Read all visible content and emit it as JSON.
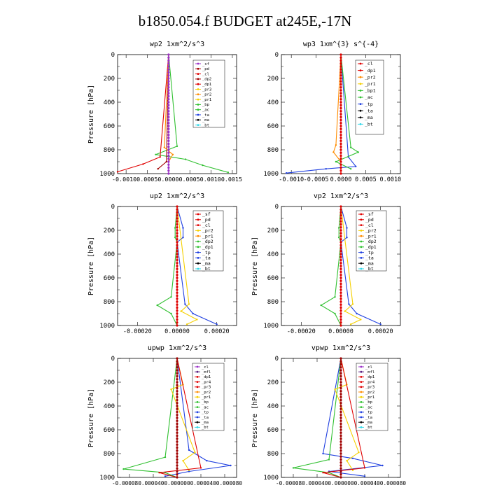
{
  "title": "b1850.054.f  BUDGET at245E,-17N",
  "colors": {
    "purple": "#9b30c8",
    "darkred": "#a00000",
    "red": "#e00000",
    "orange": "#ff8c00",
    "yellow": "#f5d000",
    "green": "#30c030",
    "blue": "#2040e0",
    "black": "#000000",
    "cyan": "#30d8e8",
    "darkpurple": "#5a2080"
  },
  "chart_data": [
    {
      "type": "line",
      "title": "wp2   1xm^2/s^3",
      "ylabel": "Pressure [hPa]",
      "ylim": [
        1000,
        0
      ],
      "xlim": [
        -0.0012,
        0.0016
      ],
      "xticks": [
        -0.001,
        -0.0005,
        0.0,
        0.0005,
        0.001,
        0.0015
      ],
      "xticklabels": [
        "-0.0010",
        "-0.0005",
        "0.0000",
        "0.0005",
        "0.0010",
        "0.0015"
      ],
      "xtick_text": "-0.00100.00050.00000.00050.00100.0015",
      "yticks": [
        0,
        200,
        400,
        600,
        800,
        1000
      ],
      "yticklabels": [
        "0",
        "200",
        "400",
        "600",
        "800",
        "1000"
      ],
      "legend": [
        "_sf",
        "_pd",
        "_cl",
        "_dp2",
        "_dp1",
        "_pr3",
        "_pr2",
        "_pr1",
        "_bp",
        "_ac",
        "_ta",
        "_ma",
        "_bt"
      ],
      "legend_colors": [
        "purple",
        "darkred",
        "red",
        "darkred",
        "red",
        "yellow",
        "orange",
        "yellow",
        "green",
        "green",
        "blue",
        "black",
        "cyan"
      ],
      "series": [
        {
          "color": "green",
          "points": [
            [
              0,
              0
            ],
            [
              0.0002,
              770
            ],
            [
              -0.0003,
              840
            ],
            [
              0.0004,
              880
            ],
            [
              0.0008,
              930
            ],
            [
              0.0014,
              990
            ]
          ]
        },
        {
          "color": "red",
          "points": [
            [
              0,
              0
            ],
            [
              -0.0002,
              860
            ],
            [
              -0.0006,
              920
            ],
            [
              -0.0012,
              985
            ]
          ]
        },
        {
          "color": "darkred",
          "points": [
            [
              0,
              0
            ],
            [
              -5e-05,
              900
            ],
            [
              -0.00025,
              960
            ]
          ]
        },
        {
          "color": "orange",
          "points": [
            [
              0,
              0
            ],
            [
              -0.0001,
              780
            ],
            [
              0.0001,
              840
            ],
            [
              0,
              900
            ]
          ]
        },
        {
          "color": "purple",
          "points": [
            [
              0,
              0
            ],
            [
              0,
              1000
            ]
          ]
        }
      ]
    },
    {
      "type": "line",
      "title": "wp3   1xm^{3} s^{-4}",
      "ylabel": "",
      "ylim": [
        1000,
        0
      ],
      "xlim": [
        -0.0012,
        0.0012
      ],
      "xticks": [
        -0.001,
        -0.0005,
        0.0,
        0.0005,
        0.001
      ],
      "xticklabels": [
        "-0.0010",
        "-0.0005",
        "0.0000",
        "0.0005",
        "0.0010"
      ],
      "xtick_text": "",
      "yticks": [
        0,
        200,
        400,
        600,
        800,
        1000
      ],
      "yticklabels": [
        "0",
        "200",
        "400",
        "600",
        "800",
        "1000"
      ],
      "legend": [
        "_cl",
        "_dp1",
        "_pr2",
        "_pr1",
        "_bp1",
        "_ac",
        "_tp",
        "_ta",
        "_ma",
        "_bt"
      ],
      "legend_colors": [
        "red",
        "red",
        "orange",
        "yellow",
        "green",
        "green",
        "blue",
        "black",
        "black",
        "cyan"
      ],
      "series": [
        {
          "color": "blue",
          "points": [
            [
              0,
              0
            ],
            [
              0.00015,
              860
            ],
            [
              0.0003,
              940
            ],
            [
              -0.0003,
              960
            ],
            [
              -0.0011,
              995
            ]
          ]
        },
        {
          "color": "green",
          "points": [
            [
              0,
              0
            ],
            [
              0.0002,
              780
            ],
            [
              0.00035,
              820
            ],
            [
              -0.0001,
              900
            ],
            [
              0.0002,
              960
            ]
          ]
        },
        {
          "color": "orange",
          "points": [
            [
              0,
              0
            ],
            [
              -0.0001,
              760
            ],
            [
              -0.00015,
              820
            ],
            [
              0,
              900
            ]
          ]
        },
        {
          "color": "red",
          "points": [
            [
              0,
              0
            ],
            [
              0,
              1000
            ]
          ]
        }
      ]
    },
    {
      "type": "line",
      "title": "up2   1xm^2/s^3",
      "ylabel": "Pressure [hPa]",
      "ylim": [
        1000,
        0
      ],
      "xlim": [
        -0.0003,
        0.0003
      ],
      "xticks": [
        -0.0002,
        0.0,
        0.0002
      ],
      "xticklabels": [
        "-0.00020",
        "0.00000",
        "0.00020"
      ],
      "xtick_text": "",
      "yticks": [
        0,
        200,
        400,
        600,
        800,
        1000
      ],
      "yticklabels": [
        "0",
        "200",
        "400",
        "600",
        "800",
        "1000"
      ],
      "legend": [
        "_sf",
        "_pd",
        "_cl",
        "_pr2",
        "_pr1",
        "_dp2",
        "_dp1",
        "_tp",
        "_ta",
        "_ma",
        "_bt"
      ],
      "legend_colors": [
        "red",
        "red",
        "red",
        "yellow",
        "orange",
        "green",
        "green",
        "blue",
        "blue",
        "black",
        "cyan"
      ],
      "series": [
        {
          "color": "green",
          "points": [
            [
              0,
              0
            ],
            [
              -1e-05,
              180
            ],
            [
              -1e-05,
              260
            ],
            [
              0,
              300
            ],
            [
              -3e-05,
              760
            ],
            [
              -0.0001,
              830
            ],
            [
              -3e-05,
              900
            ],
            [
              0,
              1000
            ]
          ]
        },
        {
          "color": "blue",
          "points": [
            [
              0,
              0
            ],
            [
              3e-05,
              180
            ],
            [
              3e-05,
              260
            ],
            [
              0,
              300
            ],
            [
              4e-05,
              820
            ],
            [
              8e-05,
              900
            ],
            [
              0.0002,
              990
            ]
          ]
        },
        {
          "color": "yellow",
          "points": [
            [
              0,
              0
            ],
            [
              6e-05,
              820
            ],
            [
              2e-05,
              880
            ],
            [
              0.0001,
              950
            ],
            [
              5e-05,
              990
            ]
          ]
        },
        {
          "color": "red",
          "points": [
            [
              0,
              0
            ],
            [
              0,
              1000
            ]
          ]
        }
      ]
    },
    {
      "type": "line",
      "title": "vp2   1xm^2/s^3",
      "ylabel": "Pressure [hPa]",
      "ylim": [
        1000,
        0
      ],
      "xlim": [
        -0.0003,
        0.0003
      ],
      "xticks": [
        -0.0002,
        0.0,
        0.0002
      ],
      "xticklabels": [
        "-0.00020",
        "0.00000",
        "0.00020"
      ],
      "xtick_text": "",
      "yticks": [
        0,
        200,
        400,
        600,
        800,
        1000
      ],
      "yticklabels": [
        "0",
        "200",
        "400",
        "600",
        "800",
        "1000"
      ],
      "legend": [
        "_sf",
        "_pd",
        "_cl",
        "_pr2",
        "_pr1",
        "_dp2",
        "_dp1",
        "_tp",
        "_ta",
        "_ma",
        "_bt"
      ],
      "legend_colors": [
        "red",
        "red",
        "red",
        "yellow",
        "orange",
        "green",
        "green",
        "blue",
        "blue",
        "black",
        "cyan"
      ],
      "series": [
        {
          "color": "green",
          "points": [
            [
              0,
              0
            ],
            [
              -1e-05,
              180
            ],
            [
              -1e-05,
              260
            ],
            [
              0,
              300
            ],
            [
              -3e-05,
              760
            ],
            [
              -0.0001,
              830
            ],
            [
              -3e-05,
              900
            ],
            [
              0,
              1000
            ]
          ]
        },
        {
          "color": "blue",
          "points": [
            [
              0,
              0
            ],
            [
              3e-05,
              180
            ],
            [
              3e-05,
              260
            ],
            [
              0,
              300
            ],
            [
              4e-05,
              820
            ],
            [
              8e-05,
              900
            ],
            [
              0.0002,
              990
            ]
          ]
        },
        {
          "color": "yellow",
          "points": [
            [
              0,
              0
            ],
            [
              6e-05,
              820
            ],
            [
              2e-05,
              880
            ],
            [
              0.0001,
              950
            ],
            [
              5e-05,
              990
            ]
          ]
        },
        {
          "color": "red",
          "points": [
            [
              0,
              0
            ],
            [
              0,
              1000
            ]
          ]
        }
      ]
    },
    {
      "type": "line",
      "title": "upwp   1xm^2/s^3",
      "ylabel": "Pressure [hPa]",
      "ylim": [
        1000,
        0
      ],
      "xlim": [
        -0.0001,
        0.0001
      ],
      "xticks": [
        -8e-05,
        -4e-05,
        0.0,
        4e-05,
        8e-05
      ],
      "xticklabels": [
        "-0.000080",
        "-0.000040",
        "0.000000",
        "0.000040",
        "0.000080"
      ],
      "xtick_text": "-0.000080.0000400.0000000.0000400.000080",
      "yticks": [
        0,
        200,
        400,
        600,
        800,
        1000
      ],
      "yticklabels": [
        "0",
        "200",
        "400",
        "600",
        "800",
        "1000"
      ],
      "legend": [
        "_cl",
        "_mfl",
        "_dp1",
        "_pr4",
        "_pr3",
        "_pr2",
        "_pr1",
        "_bp",
        "_ac",
        "_tp",
        "_ta",
        "_ma",
        "_bt"
      ],
      "legend_colors": [
        "purple",
        "darkpurple",
        "red",
        "red",
        "red",
        "orange",
        "yellow",
        "green",
        "green",
        "blue",
        "blue",
        "black",
        "cyan"
      ],
      "series": [
        {
          "color": "blue",
          "points": [
            [
              0,
              0
            ],
            [
              2e-05,
              770
            ],
            [
              5e-05,
              860
            ],
            [
              9e-05,
              900
            ],
            [
              2e-05,
              950
            ],
            [
              -2e-05,
              990
            ]
          ]
        },
        {
          "color": "green",
          "points": [
            [
              0,
              0
            ],
            [
              -2e-05,
              830
            ],
            [
              -9e-05,
              930
            ],
            [
              -2e-05,
              960
            ],
            [
              0,
              1000
            ]
          ]
        },
        {
          "color": "yellow",
          "points": [
            [
              0,
              0
            ],
            [
              1e-05,
              220
            ],
            [
              -1e-05,
              260
            ],
            [
              3e-05,
              790
            ],
            [
              1e-05,
              860
            ],
            [
              2e-05,
              940
            ]
          ]
        },
        {
          "color": "red",
          "points": [
            [
              0,
              0
            ],
            [
              4e-05,
              920
            ],
            [
              -3e-05,
              960
            ],
            [
              0,
              1000
            ]
          ]
        },
        {
          "color": "darkred",
          "points": [
            [
              0,
              0
            ],
            [
              0,
              1000
            ]
          ]
        }
      ]
    },
    {
      "type": "line",
      "title": "vpwp   1xm^2/s^3",
      "ylabel": "Pressure [hPa]",
      "ylim": [
        1000,
        0
      ],
      "xlim": [
        -0.0001,
        0.0001
      ],
      "xticks": [
        -8e-05,
        -4e-05,
        0.0,
        4e-05,
        8e-05
      ],
      "xticklabels": [
        "-0.000080",
        "-0.000040",
        "0.000000",
        "0.000040",
        "0.000080"
      ],
      "xtick_text": "-0.000080.0000400.0000000.0000400.000080",
      "yticks": [
        0,
        200,
        400,
        600,
        800,
        1000
      ],
      "yticklabels": [
        "0",
        "200",
        "400",
        "600",
        "800",
        "1000"
      ],
      "legend": [
        "_cl",
        "_mfl",
        "_dp1",
        "_pr4",
        "_pr3",
        "_pr2",
        "_pr1",
        "_bp",
        "_ac",
        "_tp",
        "_ta",
        "_ma",
        "_bt"
      ],
      "legend_colors": [
        "purple",
        "darkpurple",
        "red",
        "red",
        "red",
        "orange",
        "yellow",
        "green",
        "green",
        "blue",
        "blue",
        "black",
        "cyan"
      ],
      "series": [
        {
          "color": "blue",
          "points": [
            [
              0,
              0
            ],
            [
              -3e-05,
              800
            ],
            [
              2e-05,
              840
            ],
            [
              7e-05,
              900
            ],
            [
              -2e-05,
              950
            ],
            [
              4e-05,
              990
            ]
          ]
        },
        {
          "color": "green",
          "points": [
            [
              0,
              0
            ],
            [
              -2e-05,
              850
            ],
            [
              -8e-05,
              920
            ],
            [
              -2e-05,
              960
            ],
            [
              0,
              1000
            ]
          ]
        },
        {
          "color": "yellow",
          "points": [
            [
              0,
              0
            ],
            [
              1e-05,
              220
            ],
            [
              -1e-05,
              260
            ],
            [
              3e-05,
              790
            ],
            [
              1e-05,
              860
            ],
            [
              2e-05,
              940
            ]
          ]
        },
        {
          "color": "red",
          "points": [
            [
              0,
              0
            ],
            [
              4e-05,
              920
            ],
            [
              -3e-05,
              960
            ],
            [
              0,
              1000
            ]
          ]
        },
        {
          "color": "darkred",
          "points": [
            [
              0,
              0
            ],
            [
              0,
              1000
            ]
          ]
        }
      ]
    }
  ]
}
